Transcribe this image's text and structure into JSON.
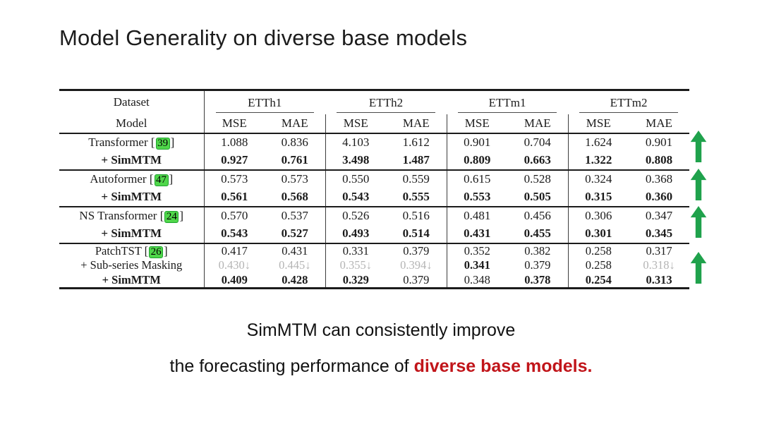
{
  "title": "Model Generality on diverse base models",
  "table": {
    "corner": {
      "dataset": "Dataset",
      "model": "Model"
    },
    "datasets": [
      "ETTh1",
      "ETTh2",
      "ETTm1",
      "ETTm2"
    ],
    "metrics": [
      "MSE",
      "MAE"
    ],
    "groups": [
      {
        "rows": [
          {
            "label": "Transformer",
            "cite": "39",
            "bold": false,
            "cells": [
              [
                "1.088",
                "n"
              ],
              [
                "0.836",
                "n"
              ],
              [
                "4.103",
                "n"
              ],
              [
                "1.612",
                "n"
              ],
              [
                "0.901",
                "n"
              ],
              [
                "0.704",
                "n"
              ],
              [
                "1.624",
                "n"
              ],
              [
                "0.901",
                "n"
              ]
            ]
          },
          {
            "label": "+ SimMTM",
            "cite": null,
            "bold": true,
            "cells": [
              [
                "0.927",
                "b"
              ],
              [
                "0.761",
                "b"
              ],
              [
                "3.498",
                "b"
              ],
              [
                "1.487",
                "b"
              ],
              [
                "0.809",
                "b"
              ],
              [
                "0.663",
                "b"
              ],
              [
                "1.322",
                "b"
              ],
              [
                "0.808",
                "b"
              ]
            ]
          }
        ]
      },
      {
        "rows": [
          {
            "label": "Autoformer",
            "cite": "47",
            "bold": false,
            "cells": [
              [
                "0.573",
                "n"
              ],
              [
                "0.573",
                "n"
              ],
              [
                "0.550",
                "n"
              ],
              [
                "0.559",
                "n"
              ],
              [
                "0.615",
                "n"
              ],
              [
                "0.528",
                "n"
              ],
              [
                "0.324",
                "n"
              ],
              [
                "0.368",
                "n"
              ]
            ]
          },
          {
            "label": "+ SimMTM",
            "cite": null,
            "bold": true,
            "cells": [
              [
                "0.561",
                "b"
              ],
              [
                "0.568",
                "b"
              ],
              [
                "0.543",
                "b"
              ],
              [
                "0.555",
                "b"
              ],
              [
                "0.553",
                "b"
              ],
              [
                "0.505",
                "b"
              ],
              [
                "0.315",
                "b"
              ],
              [
                "0.360",
                "b"
              ]
            ]
          }
        ]
      },
      {
        "rows": [
          {
            "label": "NS Transformer",
            "cite": "24",
            "bold": false,
            "cells": [
              [
                "0.570",
                "n"
              ],
              [
                "0.537",
                "n"
              ],
              [
                "0.526",
                "n"
              ],
              [
                "0.516",
                "n"
              ],
              [
                "0.481",
                "n"
              ],
              [
                "0.456",
                "n"
              ],
              [
                "0.306",
                "n"
              ],
              [
                "0.347",
                "n"
              ]
            ]
          },
          {
            "label": "+ SimMTM",
            "cite": null,
            "bold": true,
            "cells": [
              [
                "0.543",
                "b"
              ],
              [
                "0.527",
                "b"
              ],
              [
                "0.493",
                "b"
              ],
              [
                "0.514",
                "b"
              ],
              [
                "0.431",
                "b"
              ],
              [
                "0.455",
                "b"
              ],
              [
                "0.301",
                "b"
              ],
              [
                "0.345",
                "b"
              ]
            ]
          }
        ]
      },
      {
        "rows": [
          {
            "label": "PatchTST",
            "cite": "26",
            "bold": false,
            "cells": [
              [
                "0.417",
                "n"
              ],
              [
                "0.431",
                "n"
              ],
              [
                "0.331",
                "n"
              ],
              [
                "0.379",
                "n"
              ],
              [
                "0.352",
                "n"
              ],
              [
                "0.382",
                "n"
              ],
              [
                "0.258",
                "n"
              ],
              [
                "0.317",
                "n"
              ]
            ]
          },
          {
            "label": "+ Sub-series Masking",
            "cite": null,
            "bold": false,
            "cells": [
              [
                "0.430↓",
                "g"
              ],
              [
                "0.445↓",
                "g"
              ],
              [
                "0.355↓",
                "g"
              ],
              [
                "0.394↓",
                "g"
              ],
              [
                "0.341",
                "b"
              ],
              [
                "0.379",
                "n"
              ],
              [
                "0.258",
                "n"
              ],
              [
                "0.318↓",
                "g"
              ]
            ]
          },
          {
            "label": "+ SimMTM",
            "cite": null,
            "bold": true,
            "cells": [
              [
                "0.409",
                "b"
              ],
              [
                "0.428",
                "b"
              ],
              [
                "0.329",
                "b"
              ],
              [
                "0.379",
                "n"
              ],
              [
                "0.348",
                "n"
              ],
              [
                "0.378",
                "b"
              ],
              [
                "0.254",
                "b"
              ],
              [
                "0.313",
                "b"
              ]
            ]
          }
        ]
      }
    ]
  },
  "arrows": {
    "count": 4,
    "direction": "up"
  },
  "caption": {
    "line1": "SimMTM can consistently improve",
    "line2_prefix": "the forecasting performance of ",
    "line2_highlight": "diverse base models."
  },
  "colors": {
    "arrow_green": "#1fa24c",
    "citation_green": "#4fd64a",
    "citation_border": "#1fa32f",
    "highlight_red": "#c1151a",
    "gray_value": "#b4b4b4"
  }
}
